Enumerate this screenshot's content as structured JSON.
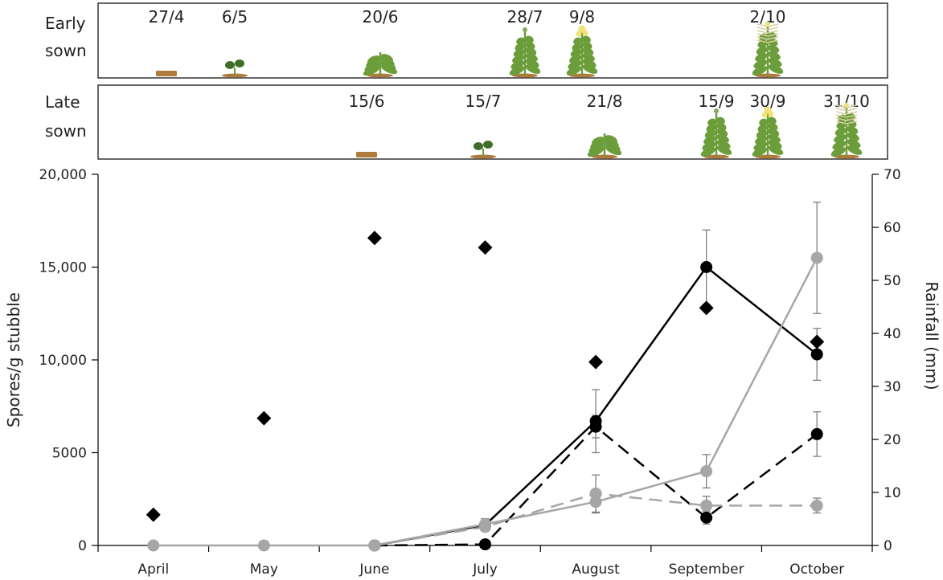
{
  "stages": {
    "early": {
      "label_line1": "Early",
      "label_line2": "sown",
      "items": [
        {
          "date": "27/4",
          "stage": "seed"
        },
        {
          "date": "6/5",
          "stage": "seedling"
        },
        {
          "date": "20/6",
          "stage": "rosette"
        },
        {
          "date": "28/7",
          "stage": "elongation"
        },
        {
          "date": "9/8",
          "stage": "flowering"
        },
        {
          "date": "2/10",
          "stage": "podding"
        }
      ]
    },
    "late": {
      "label_line1": "Late",
      "label_line2": "sown",
      "items": [
        {
          "date": "15/6",
          "stage": "seed"
        },
        {
          "date": "15/7",
          "stage": "seedling"
        },
        {
          "date": "21/8",
          "stage": "rosette"
        },
        {
          "date": "15/9",
          "stage": "elongation"
        },
        {
          "date": "30/9",
          "stage": "flowering"
        },
        {
          "date": "31/10",
          "stage": "podding"
        }
      ]
    }
  },
  "colors": {
    "black_series": "#000000",
    "grey_series": "#a6a6a6",
    "error_bar": "#7f7f7f",
    "panel_border": "#333333",
    "soil": "#b07a3c",
    "plant": "#6b9e3a",
    "flower": "#f2e27a"
  },
  "chart_data": {
    "type": "line",
    "categories": [
      "April",
      "May",
      "June",
      "July",
      "August",
      "September",
      "October"
    ],
    "ylabel": "Spores/g stubble",
    "ylim": [
      0,
      20000
    ],
    "yticks": [
      "0",
      "5000",
      "10,000",
      "15,000",
      "20,000"
    ],
    "ytick_values": [
      0,
      5000,
      10000,
      15000,
      20000
    ],
    "y2label": "Rainfall (mm)",
    "y2lim": [
      0,
      70
    ],
    "y2ticks": [
      "0",
      "10",
      "20",
      "30",
      "40",
      "50",
      "60",
      "70"
    ],
    "y2tick_values": [
      0,
      10,
      20,
      30,
      40,
      50,
      60,
      70
    ],
    "series": [
      {
        "style": "black-solid",
        "color": "#000000",
        "dash": false,
        "marker": "circle",
        "values": [
          null,
          null,
          0,
          1100,
          6700,
          15000,
          10300
        ],
        "errors": [
          null,
          null,
          null,
          300,
          1700,
          2000,
          1400
        ]
      },
      {
        "style": "black-dashed",
        "color": "#000000",
        "dash": true,
        "marker": "circle",
        "values": [
          null,
          null,
          0,
          60,
          6400,
          1500,
          6000
        ],
        "errors": [
          null,
          null,
          null,
          null,
          600,
          350,
          1200
        ]
      },
      {
        "style": "grey-solid",
        "color": "#a6a6a6",
        "dash": false,
        "marker": "circle",
        "values": [
          0,
          0,
          0,
          1150,
          2350,
          4000,
          15500
        ],
        "errors": [
          null,
          null,
          null,
          300,
          600,
          900,
          3000
        ]
      },
      {
        "style": "grey-dashed",
        "color": "#a6a6a6",
        "dash": true,
        "marker": "circle",
        "values": [
          null,
          null,
          0,
          1000,
          2800,
          2150,
          2150
        ],
        "errors": [
          null,
          null,
          null,
          null,
          1000,
          500,
          400
        ]
      }
    ],
    "rainfall_mm": [
      5.8,
      24,
      58,
      56.2,
      34.6,
      44.8,
      38.4
    ],
    "rainfall_marker": "diamond"
  }
}
